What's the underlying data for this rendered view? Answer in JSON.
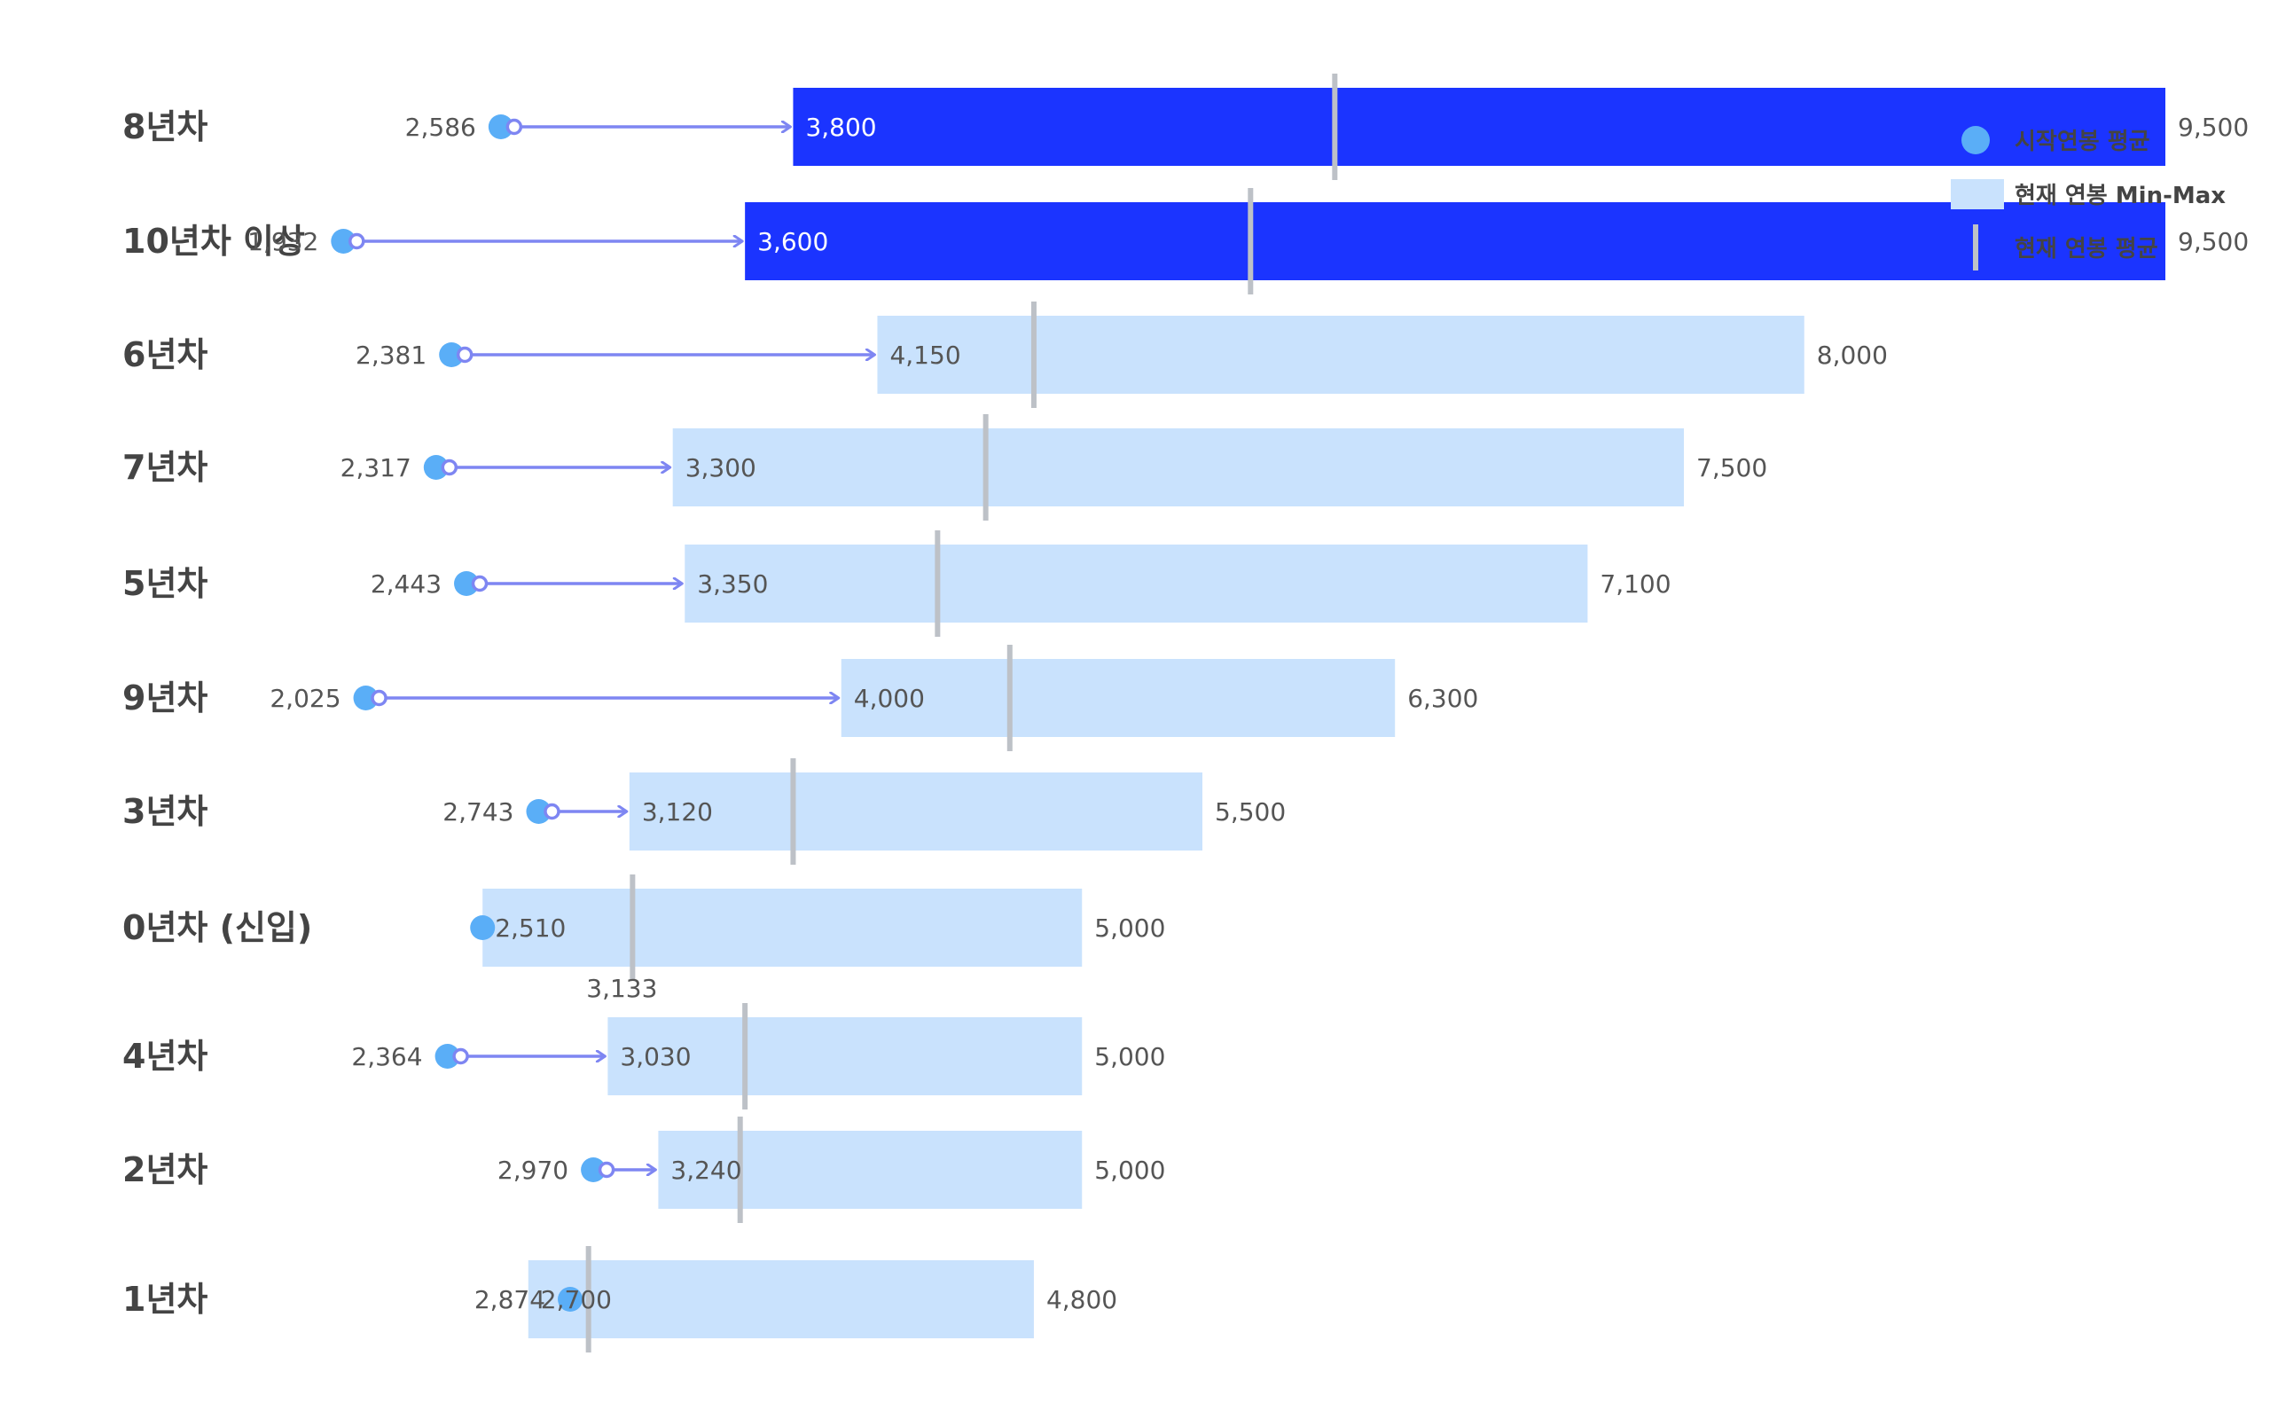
{
  "chart_data": {
    "type": "bar",
    "orientation": "horizontal",
    "categories": [
      "8년차",
      "10년차 이상",
      "6년차",
      "7년차",
      "5년차",
      "9년차",
      "3년차",
      "0년차 (신입)",
      "4년차",
      "2년차",
      "1년차"
    ],
    "series": [
      {
        "name": "시작연봉 평균",
        "values": [
          2586,
          1932,
          2381,
          2317,
          2443,
          2025,
          2743,
          2510,
          2364,
          2970,
          2874
        ]
      },
      {
        "name": "현재 연봉 Min-Max",
        "min": [
          3800,
          3600,
          4150,
          3300,
          3350,
          4000,
          3120,
          2510,
          3030,
          3240,
          2700
        ],
        "max": [
          9500,
          9500,
          8000,
          7500,
          7100,
          6300,
          5500,
          5000,
          5000,
          5000,
          4800
        ]
      },
      {
        "name": "현재 연봉 평균",
        "values": [
          6050,
          5700,
          4800,
          4600,
          4400,
          4700,
          3800,
          3133,
          3600,
          3580,
          2950
        ]
      }
    ],
    "labels": {
      "start": [
        "2,586",
        "1,932",
        "2,381",
        "2,317",
        "2,443",
        "2,025",
        "2,743",
        "",
        "2,364",
        "2,970",
        "2,874"
      ],
      "min": [
        "3,800",
        "3,600",
        "4,150",
        "3,300",
        "3,350",
        "4,000",
        "3,120",
        "2,510",
        "3,030",
        "3,240",
        "2,700"
      ],
      "max": [
        "9,500",
        "9,500",
        "8,000",
        "7,500",
        "7,100",
        "6,300",
        "5,500",
        "5,000",
        "5,000",
        "5,000",
        "4,800"
      ],
      "avg": [
        "",
        "",
        "",
        "",
        "",
        "",
        "",
        "3,133",
        "",
        "",
        ""
      ]
    },
    "highlight": [
      true,
      true,
      false,
      false,
      false,
      false,
      false,
      false,
      false,
      false,
      false
    ],
    "colors": {
      "highlight_bar": "#1b34ff",
      "range_bar": "#c9e2fd",
      "start_dot": "#5aaef7",
      "arrow": "#7e86f2",
      "avg_line": "#bdc1c7"
    },
    "legend": {
      "position": "top-right",
      "items": [
        {
          "label": "시작연봉 평균",
          "icon": "circle-icon"
        },
        {
          "label": "현재 연봉 Min-Max",
          "icon": "rect-icon"
        },
        {
          "label": "현재 연봉 평균",
          "icon": "vertical-line-icon"
        }
      ]
    },
    "title": "",
    "xlabel": "",
    "ylabel": "",
    "grid": false
  }
}
